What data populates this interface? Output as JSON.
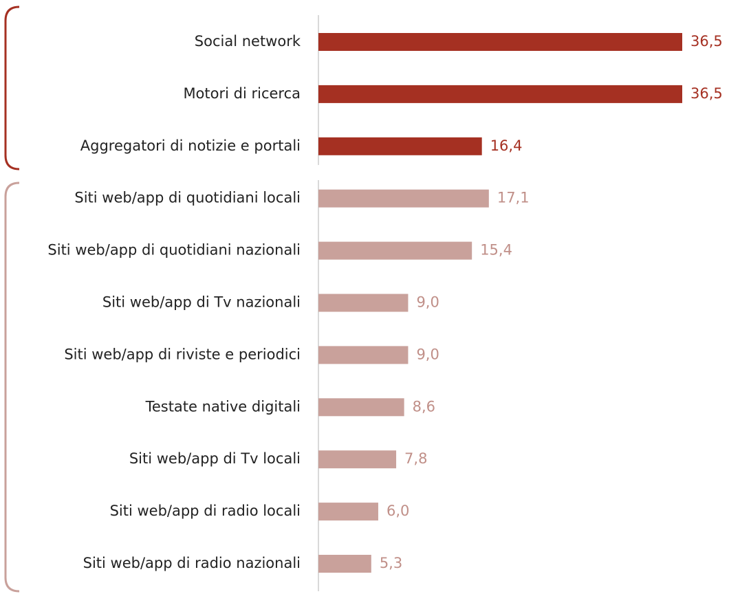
{
  "chart_data": {
    "type": "barh",
    "categories": [
      "Social network",
      "Motori di ricerca",
      "Aggregatori di notizie e portali",
      "Siti web/app di quotidiani locali",
      "Siti web/app di quotidiani nazionali",
      "Siti web/app di Tv nazionali",
      "Siti web/app di riviste e periodici",
      "Testate native digitali",
      "Siti web/app di Tv locali",
      "Siti web/app di radio locali",
      "Siti web/app di radio nazionali"
    ],
    "values": [
      36.5,
      36.5,
      16.4,
      17.1,
      15.4,
      9.0,
      9.0,
      8.6,
      7.8,
      6.0,
      5.3
    ],
    "value_labels": [
      "36,5",
      "36,5",
      "16,4",
      "17,1",
      "15,4",
      "9,0",
      "9,0",
      "8,6",
      "7,8",
      "6,0",
      "5,3"
    ],
    "colors": [
      "#a53022",
      "#a53022",
      "#a53022",
      "#c9a19b",
      "#c9a19b",
      "#c9a19b",
      "#c9a19b",
      "#c9a19b",
      "#c9a19b",
      "#c9a19b",
      "#c9a19b"
    ],
    "label_colors": [
      "#a53022",
      "#a53022",
      "#a53022",
      "#c08f88",
      "#c08f88",
      "#c08f88",
      "#c08f88",
      "#c08f88",
      "#c08f88",
      "#c08f88",
      "#c08f88"
    ]
  }
}
